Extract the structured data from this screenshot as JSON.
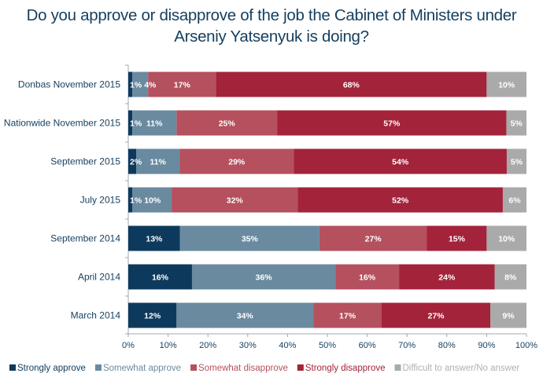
{
  "chart_data": {
    "type": "bar",
    "orientation": "horizontal",
    "stacked": "100%",
    "title": "Do you approve or disapprove of the job the Cabinet of Ministers under Arseniy Yatsenyuk is doing?",
    "categories": [
      "Donbas November 2015",
      "Nationwide November 2015",
      "September 2015",
      "July 2015",
      "September 2014",
      "April 2014",
      "March 2014"
    ],
    "series": [
      {
        "name": "Strongly approve",
        "color": "#0d3a5c",
        "values": [
          1,
          1,
          2,
          1,
          13,
          16,
          12
        ]
      },
      {
        "name": "Somewhat approve",
        "color": "#6a8aa0",
        "values": [
          4,
          11,
          11,
          10,
          35,
          36,
          34
        ]
      },
      {
        "name": "Somewhat disapprove",
        "color": "#b5505e",
        "values": [
          17,
          25,
          29,
          32,
          27,
          16,
          17
        ]
      },
      {
        "name": "Strongly disapprove",
        "color": "#a3233a",
        "values": [
          68,
          57,
          54,
          52,
          15,
          24,
          27
        ]
      },
      {
        "name": "Difficult to answer/No answer",
        "color": "#aaaaaa",
        "values": [
          10,
          5,
          5,
          6,
          10,
          8,
          9
        ]
      }
    ],
    "data_labels": [
      [
        "1%",
        "4%",
        "17%",
        "68%",
        "10%"
      ],
      [
        "1%",
        "11%",
        "25%",
        "57%",
        "5%"
      ],
      [
        "2%",
        "11%",
        "29%",
        "54%",
        "5%"
      ],
      [
        "1%",
        "10%",
        "32%",
        "52%",
        "6%"
      ],
      [
        "13%",
        "35%",
        "27%",
        "15%",
        "10%"
      ],
      [
        "16%",
        "36%",
        "16%",
        "24%",
        "8%"
      ],
      [
        "12%",
        "34%",
        "17%",
        "27%",
        "9%"
      ]
    ],
    "xticks": [
      "0%",
      "10%",
      "20%",
      "30%",
      "40%",
      "50%",
      "60%",
      "70%",
      "80%",
      "90%",
      "100%"
    ],
    "xlim": [
      0,
      100
    ],
    "grid": false,
    "legend_position": "bottom",
    "title_color": "#143f5f"
  }
}
